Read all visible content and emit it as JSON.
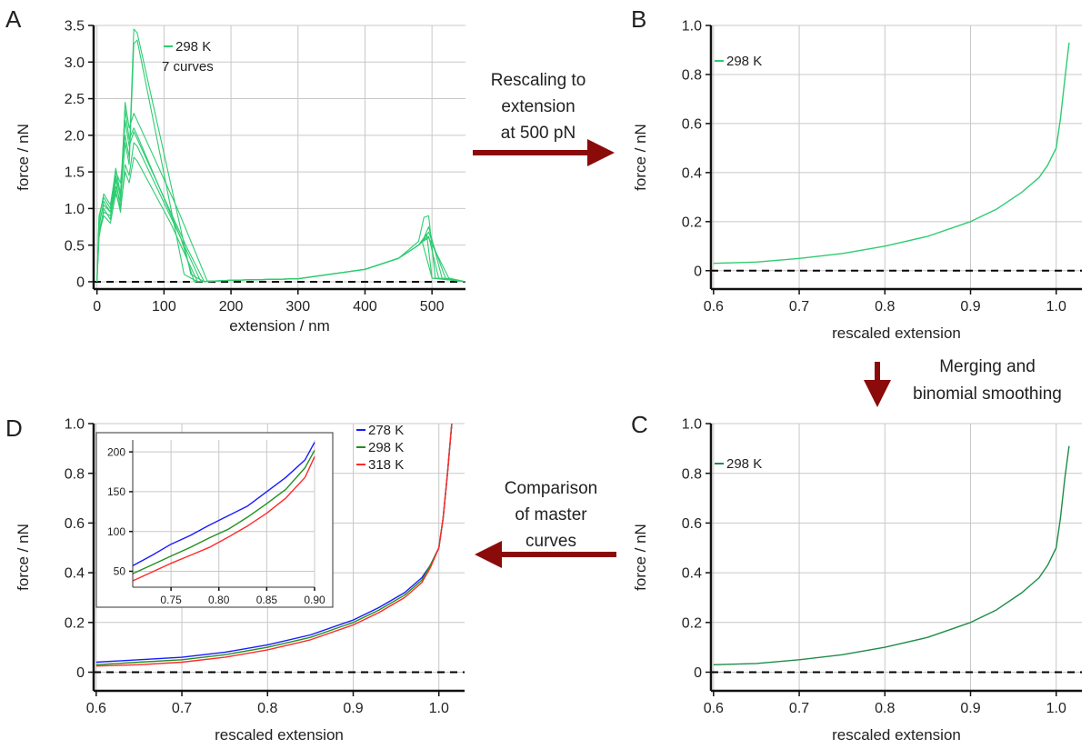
{
  "panels": {
    "A": {
      "letter": "A"
    },
    "B": {
      "letter": "B"
    },
    "C": {
      "letter": "C"
    },
    "D": {
      "letter": "D"
    }
  },
  "arrows": {
    "rescale": {
      "lines": [
        "Rescaling to",
        "extension",
        "at 500 pN"
      ]
    },
    "merge": {
      "lines": [
        "Merging and",
        "binomial smoothing"
      ]
    },
    "compare": {
      "lines": [
        "Comparison",
        "of master",
        "curves"
      ]
    }
  },
  "colors": {
    "green": "#2ecc71",
    "dark_green": "#1e8c4a",
    "blue": "#1a1aff",
    "red": "#ff2a2a",
    "mid_green": "#209020",
    "arrow": "#8b0a0a"
  },
  "chart_data": [
    {
      "id": "A",
      "type": "line",
      "xlabel": "extension / nm",
      "ylabel": "force / nN",
      "xlim": [
        -5,
        550
      ],
      "ylim": [
        -0.1,
        3.5
      ],
      "xticks": [
        0,
        100,
        200,
        300,
        400,
        500
      ],
      "yticks": [
        0,
        0.5,
        1.0,
        1.5,
        2.0,
        2.5,
        3.0,
        3.5
      ],
      "xtick_labels": [
        "0",
        "100",
        "200",
        "300",
        "400",
        "500"
      ],
      "ytick_labels": [
        "0",
        "0.5",
        "1.0",
        "1.5",
        "2.0",
        "2.5",
        "3.0",
        "3.5"
      ],
      "grid": true,
      "zero_line": true,
      "legend": {
        "position": "top-center",
        "entries": [
          {
            "name": "298 K",
            "note": "7 curves"
          }
        ]
      },
      "series": [
        {
          "name": "298 K",
          "x": [
            0,
            3,
            10,
            20,
            28,
            35,
            42,
            48,
            55,
            60,
            140,
            160,
            200,
            300,
            400,
            450,
            480,
            488,
            495,
            505,
            550
          ],
          "y": [
            0,
            0.85,
            1.2,
            1.05,
            1.5,
            1.35,
            2.0,
            1.7,
            3.45,
            3.4,
            0.1,
            0.0,
            0.02,
            0.04,
            0.17,
            0.32,
            0.55,
            0.88,
            0.9,
            0.05,
            0.0
          ]
        },
        {
          "name": "298 K",
          "x": [
            0,
            3,
            10,
            20,
            28,
            35,
            42,
            48,
            55,
            60,
            130,
            150,
            200,
            300,
            400,
            450,
            480,
            488,
            492,
            500,
            550
          ],
          "y": [
            0,
            0.75,
            1.1,
            0.95,
            1.3,
            1.1,
            1.9,
            1.6,
            3.25,
            3.3,
            0.1,
            0.0,
            0.02,
            0.04,
            0.17,
            0.32,
            0.5,
            0.6,
            0.65,
            0.05,
            0.0
          ]
        },
        {
          "name": "298 K",
          "x": [
            0,
            3,
            10,
            20,
            28,
            35,
            42,
            48,
            55,
            60,
            120,
            165,
            200,
            300,
            400,
            450,
            480,
            485,
            500,
            550
          ],
          "y": [
            0,
            0.6,
            1.0,
            0.85,
            1.4,
            1.0,
            2.45,
            2.1,
            2.3,
            2.2,
            1.0,
            0.0,
            0.02,
            0.04,
            0.17,
            0.32,
            0.5,
            0.56,
            0.05,
            0.0
          ]
        },
        {
          "name": "298 K",
          "x": [
            0,
            3,
            10,
            20,
            28,
            35,
            42,
            48,
            55,
            60,
            125,
            145,
            200,
            300,
            400,
            450,
            480,
            488,
            495,
            515,
            550
          ],
          "y": [
            0,
            0.9,
            1.15,
            1.0,
            1.55,
            1.2,
            2.35,
            1.95,
            2.1,
            2.0,
            0.6,
            0.0,
            0.02,
            0.04,
            0.17,
            0.32,
            0.5,
            0.6,
            0.75,
            0.05,
            0.0
          ]
        },
        {
          "name": "298 K",
          "x": [
            0,
            3,
            10,
            20,
            28,
            35,
            42,
            48,
            55,
            60,
            130,
            155,
            200,
            300,
            400,
            450,
            480,
            485,
            495,
            510,
            550
          ],
          "y": [
            0,
            0.7,
            0.95,
            0.9,
            1.25,
            0.95,
            1.6,
            1.45,
            1.9,
            1.85,
            0.5,
            0.0,
            0.02,
            0.04,
            0.17,
            0.32,
            0.5,
            0.55,
            0.62,
            0.05,
            0.0
          ]
        },
        {
          "name": "298 K",
          "x": [
            0,
            3,
            10,
            20,
            28,
            35,
            42,
            48,
            55,
            60,
            135,
            160,
            200,
            300,
            400,
            450,
            480,
            488,
            495,
            520,
            550
          ],
          "y": [
            0,
            0.8,
            1.05,
            0.95,
            1.45,
            1.15,
            2.2,
            1.85,
            2.05,
            1.95,
            0.45,
            0.0,
            0.02,
            0.04,
            0.17,
            0.32,
            0.5,
            0.58,
            0.68,
            0.05,
            0.0
          ]
        },
        {
          "name": "298 K",
          "x": [
            0,
            3,
            10,
            20,
            28,
            35,
            42,
            48,
            55,
            60,
            110,
            150,
            200,
            300,
            400,
            450,
            480,
            485,
            495,
            525,
            550
          ],
          "y": [
            0,
            0.65,
            0.9,
            0.8,
            1.2,
            1.0,
            1.5,
            1.35,
            1.7,
            1.65,
            0.8,
            0.0,
            0.02,
            0.04,
            0.17,
            0.32,
            0.5,
            0.54,
            0.6,
            0.05,
            0.0
          ]
        }
      ]
    },
    {
      "id": "B",
      "type": "line",
      "xlabel": "rescaled extension",
      "ylabel": "force / nN",
      "xlim": [
        0.597,
        1.03
      ],
      "ylim": [
        -0.075,
        1.0
      ],
      "xticks": [
        0.6,
        0.7,
        0.8,
        0.9,
        1.0
      ],
      "yticks": [
        0,
        0.2,
        0.4,
        0.6,
        0.8,
        1.0
      ],
      "xtick_labels": [
        "0.6",
        "0.7",
        "0.8",
        "0.9",
        "1.0"
      ],
      "ytick_labels": [
        "0",
        "0.2",
        "0.4",
        "0.6",
        "0.8",
        "1.0"
      ],
      "grid": true,
      "zero_line": true,
      "legend": {
        "position": "top-left",
        "entries": [
          {
            "name": "298 K"
          }
        ]
      },
      "series": [
        {
          "name": "298 K",
          "x": [
            0.6,
            0.65,
            0.7,
            0.75,
            0.8,
            0.85,
            0.9,
            0.93,
            0.96,
            0.98,
            0.99,
            1.0,
            1.005,
            1.01,
            1.015
          ],
          "y": [
            0.03,
            0.035,
            0.05,
            0.07,
            0.1,
            0.14,
            0.2,
            0.25,
            0.32,
            0.38,
            0.43,
            0.5,
            0.62,
            0.78,
            0.93
          ]
        }
      ]
    },
    {
      "id": "C",
      "type": "line",
      "xlabel": "rescaled extension",
      "ylabel": "force / nN",
      "xlim": [
        0.597,
        1.03
      ],
      "ylim": [
        -0.075,
        1.0
      ],
      "xticks": [
        0.6,
        0.7,
        0.8,
        0.9,
        1.0
      ],
      "yticks": [
        0,
        0.2,
        0.4,
        0.6,
        0.8,
        1.0
      ],
      "xtick_labels": [
        "0.6",
        "0.7",
        "0.8",
        "0.9",
        "1.0"
      ],
      "ytick_labels": [
        "0",
        "0.2",
        "0.4",
        "0.6",
        "0.8",
        "1.0"
      ],
      "grid": true,
      "zero_line": true,
      "legend": {
        "position": "top-left",
        "entries": [
          {
            "name": "298 K"
          }
        ]
      },
      "series": [
        {
          "name": "298 K",
          "x": [
            0.6,
            0.65,
            0.7,
            0.75,
            0.8,
            0.85,
            0.9,
            0.93,
            0.96,
            0.98,
            0.99,
            1.0,
            1.005,
            1.01,
            1.015
          ],
          "y": [
            0.03,
            0.035,
            0.05,
            0.07,
            0.1,
            0.14,
            0.2,
            0.25,
            0.32,
            0.38,
            0.43,
            0.5,
            0.62,
            0.78,
            0.91
          ]
        }
      ]
    },
    {
      "id": "D",
      "type": "line",
      "xlabel": "rescaled extension",
      "ylabel": "force / nN",
      "xlim": [
        0.597,
        1.03
      ],
      "ylim": [
        -0.075,
        1.0
      ],
      "xticks": [
        0.6,
        0.7,
        0.8,
        0.9,
        1.0
      ],
      "yticks": [
        0,
        0.2,
        0.4,
        0.6,
        0.8,
        1.0
      ],
      "xtick_labels": [
        "0.6",
        "0.7",
        "0.8",
        "0.9",
        "1.0"
      ],
      "ytick_labels": [
        "0",
        "0.2",
        "0.4",
        "0.6",
        "0.8",
        "1.0"
      ],
      "grid": true,
      "zero_line": true,
      "legend": {
        "position": "top-right",
        "entries": [
          {
            "name": "278 K"
          },
          {
            "name": "298 K"
          },
          {
            "name": "318 K"
          }
        ]
      },
      "series": [
        {
          "name": "278 K",
          "x": [
            0.6,
            0.65,
            0.7,
            0.75,
            0.8,
            0.85,
            0.9,
            0.93,
            0.96,
            0.98,
            0.99,
            1.0,
            1.005,
            1.01,
            1.015
          ],
          "y": [
            0.04,
            0.05,
            0.06,
            0.08,
            0.11,
            0.15,
            0.21,
            0.26,
            0.32,
            0.38,
            0.43,
            0.5,
            0.62,
            0.8,
            1.0
          ]
        },
        {
          "name": "298 K",
          "x": [
            0.6,
            0.65,
            0.7,
            0.75,
            0.8,
            0.85,
            0.9,
            0.93,
            0.96,
            0.98,
            0.99,
            1.0,
            1.005,
            1.01,
            1.015
          ],
          "y": [
            0.03,
            0.04,
            0.05,
            0.07,
            0.1,
            0.14,
            0.2,
            0.25,
            0.31,
            0.37,
            0.43,
            0.5,
            0.62,
            0.8,
            1.0
          ]
        },
        {
          "name": "318 K",
          "x": [
            0.6,
            0.65,
            0.7,
            0.75,
            0.8,
            0.85,
            0.9,
            0.93,
            0.96,
            0.98,
            0.99,
            1.0,
            1.005,
            1.01,
            1.015
          ],
          "y": [
            0.025,
            0.03,
            0.04,
            0.06,
            0.09,
            0.13,
            0.19,
            0.24,
            0.3,
            0.36,
            0.42,
            0.5,
            0.62,
            0.8,
            1.0
          ]
        }
      ]
    },
    {
      "id": "D-inset",
      "type": "line",
      "xlabel": "",
      "ylabel": "",
      "xlim": [
        0.71,
        0.9
      ],
      "ylim": [
        30,
        215
      ],
      "xticks": [
        0.75,
        0.8,
        0.85,
        0.9
      ],
      "yticks": [
        50,
        100,
        150,
        200
      ],
      "xtick_labels": [
        "0.75",
        "0.80",
        "0.85",
        "0.90"
      ],
      "ytick_labels": [
        "50",
        "100",
        "150",
        "200"
      ],
      "grid": true,
      "zero_line": false,
      "series": [
        {
          "name": "278 K",
          "x": [
            0.71,
            0.73,
            0.75,
            0.77,
            0.79,
            0.81,
            0.83,
            0.85,
            0.87,
            0.89,
            0.9
          ],
          "y": [
            57,
            70,
            84,
            95,
            108,
            120,
            132,
            150,
            168,
            190,
            212
          ]
        },
        {
          "name": "298 K",
          "x": [
            0.71,
            0.73,
            0.75,
            0.77,
            0.79,
            0.81,
            0.83,
            0.85,
            0.87,
            0.89,
            0.9
          ],
          "y": [
            47,
            58,
            69,
            80,
            92,
            103,
            118,
            135,
            153,
            180,
            202
          ]
        },
        {
          "name": "318 K",
          "x": [
            0.71,
            0.73,
            0.75,
            0.77,
            0.79,
            0.81,
            0.83,
            0.85,
            0.87,
            0.89,
            0.9
          ],
          "y": [
            38,
            49,
            60,
            70,
            80,
            93,
            107,
            123,
            142,
            168,
            194
          ]
        }
      ]
    }
  ]
}
